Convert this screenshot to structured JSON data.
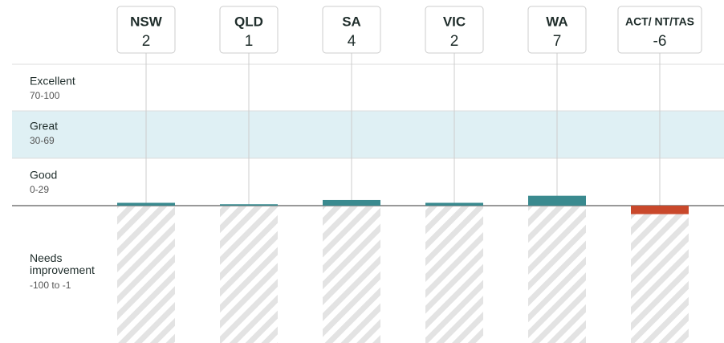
{
  "chart_data": {
    "type": "bar",
    "categories": [
      "NSW",
      "QLD",
      "SA",
      "VIC",
      "WA",
      "ACT/ NT/TAS"
    ],
    "values": [
      2,
      1,
      4,
      2,
      7,
      -6
    ],
    "color": "#3a8a8f",
    "negative_color": "#c9482b",
    "ylim": [
      -100,
      100
    ]
  },
  "zones": [
    {
      "name": "Excellent",
      "range": "70-100"
    },
    {
      "name": "Great",
      "range": "30-69"
    },
    {
      "name": "Good",
      "range": "0-29"
    },
    {
      "name": "Needs improvement",
      "range": "-100 to -1"
    }
  ]
}
